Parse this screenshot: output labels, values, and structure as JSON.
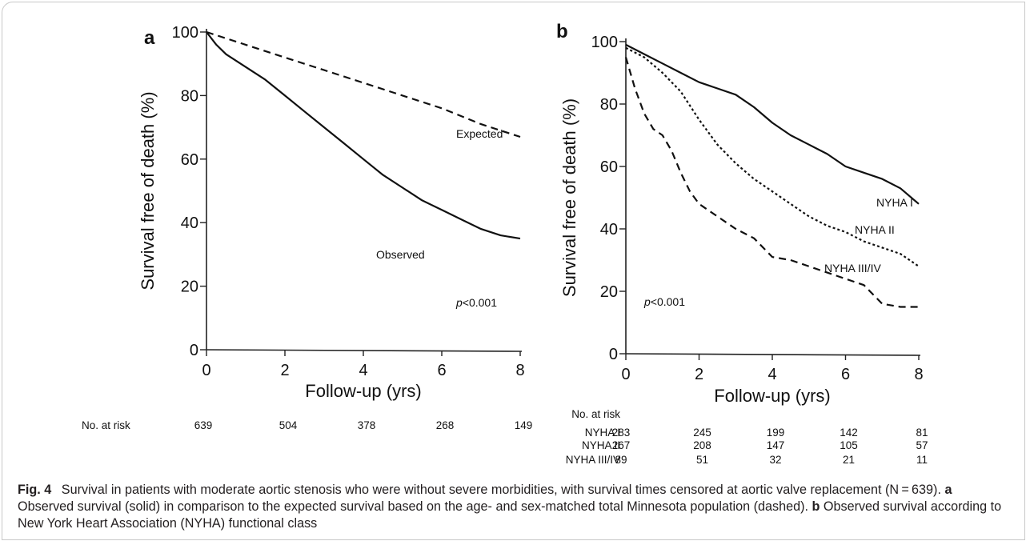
{
  "chart_data": [
    {
      "panel": "a",
      "type": "line",
      "xlabel": "Follow-up (yrs)",
      "ylabel": "Survival free of death (%)",
      "xlim": [
        0,
        8
      ],
      "ylim": [
        0,
        100
      ],
      "xticks": [
        0,
        2,
        4,
        6,
        8
      ],
      "yticks": [
        0,
        20,
        40,
        60,
        80,
        100
      ],
      "annotation": "p<0.001",
      "series": [
        {
          "name": "Expected",
          "style": "dashed",
          "x": [
            0,
            1,
            2,
            3,
            4,
            5,
            6,
            7,
            8
          ],
          "y": [
            100,
            96,
            92,
            88,
            84,
            80,
            76,
            71,
            67
          ]
        },
        {
          "name": "Observed",
          "style": "solid",
          "x": [
            0,
            0.25,
            0.5,
            1,
            1.5,
            2,
            2.5,
            3,
            3.5,
            4,
            4.5,
            5,
            5.5,
            6,
            6.5,
            7,
            7.5,
            8
          ],
          "y": [
            100,
            96,
            93,
            89,
            85,
            80,
            75,
            70,
            65,
            60,
            55,
            51,
            47,
            44,
            41,
            38,
            36,
            35
          ]
        }
      ],
      "risk_table": {
        "title": "No. at risk",
        "rows": [
          {
            "label": "",
            "values": [
              "639",
              "504",
              "378",
              "268",
              "149"
            ]
          }
        ]
      }
    },
    {
      "panel": "b",
      "type": "line",
      "xlabel": "Follow-up (yrs)",
      "ylabel": "Survival free of death (%)",
      "xlim": [
        0,
        8
      ],
      "ylim": [
        0,
        100
      ],
      "xticks": [
        0,
        2,
        4,
        6,
        8
      ],
      "yticks": [
        0,
        20,
        40,
        60,
        80,
        100
      ],
      "annotation": "p<0.001",
      "series": [
        {
          "name": "NYHA I",
          "style": "solid",
          "x": [
            0,
            0.5,
            1,
            1.5,
            2,
            2.5,
            3,
            3.5,
            4,
            4.5,
            5,
            5.5,
            6,
            6.5,
            7,
            7.5,
            8
          ],
          "y": [
            99,
            96,
            93,
            90,
            87,
            85,
            83,
            79,
            74,
            70,
            67,
            64,
            60,
            58,
            56,
            53,
            48
          ]
        },
        {
          "name": "NYHA II",
          "style": "dotted",
          "x": [
            0,
            0.5,
            1,
            1.5,
            2,
            2.5,
            3,
            3.5,
            4,
            4.5,
            5,
            5.5,
            6,
            6.5,
            7,
            7.5,
            8
          ],
          "y": [
            98,
            95,
            90,
            84,
            75,
            67,
            61,
            56,
            52,
            48,
            44,
            41,
            39,
            36,
            34,
            32,
            28
          ]
        },
        {
          "name": "NYHA III/IV",
          "style": "dashed",
          "x": [
            0,
            0.25,
            0.5,
            0.75,
            1,
            1.25,
            1.5,
            1.75,
            2,
            2.5,
            3,
            3.5,
            4,
            4.5,
            5,
            5.5,
            6,
            6.5,
            7,
            7.5,
            8
          ],
          "y": [
            95,
            85,
            77,
            72,
            70,
            65,
            58,
            52,
            48,
            44,
            40,
            37,
            31,
            30,
            28,
            26,
            24,
            22,
            16,
            15,
            15
          ]
        }
      ],
      "risk_table": {
        "title": "No. at risk",
        "rows": [
          {
            "label": "NYHA I",
            "values": [
              "283",
              "245",
              "199",
              "142",
              "81"
            ]
          },
          {
            "label": "NYHA II",
            "values": [
              "267",
              "208",
              "147",
              "105",
              "57"
            ]
          },
          {
            "label": "NYHA III/IV",
            "values": [
              "89",
              "51",
              "32",
              "21",
              "11"
            ]
          }
        ]
      }
    }
  ],
  "caption": {
    "fig_label": "Fig. 4",
    "main": "Survival in patients with moderate aortic stenosis who were without severe morbidities, with survival times censored at aortic valve replacement (N = 639).",
    "a_label": "a",
    "a_text": "Observed survival (solid) in comparison to the expected survival based on the age- and sex-matched total Minnesota population (dashed).",
    "b_label": "b",
    "b_text": "Observed survival according to New York Heart Association (NYHA) functional class"
  }
}
